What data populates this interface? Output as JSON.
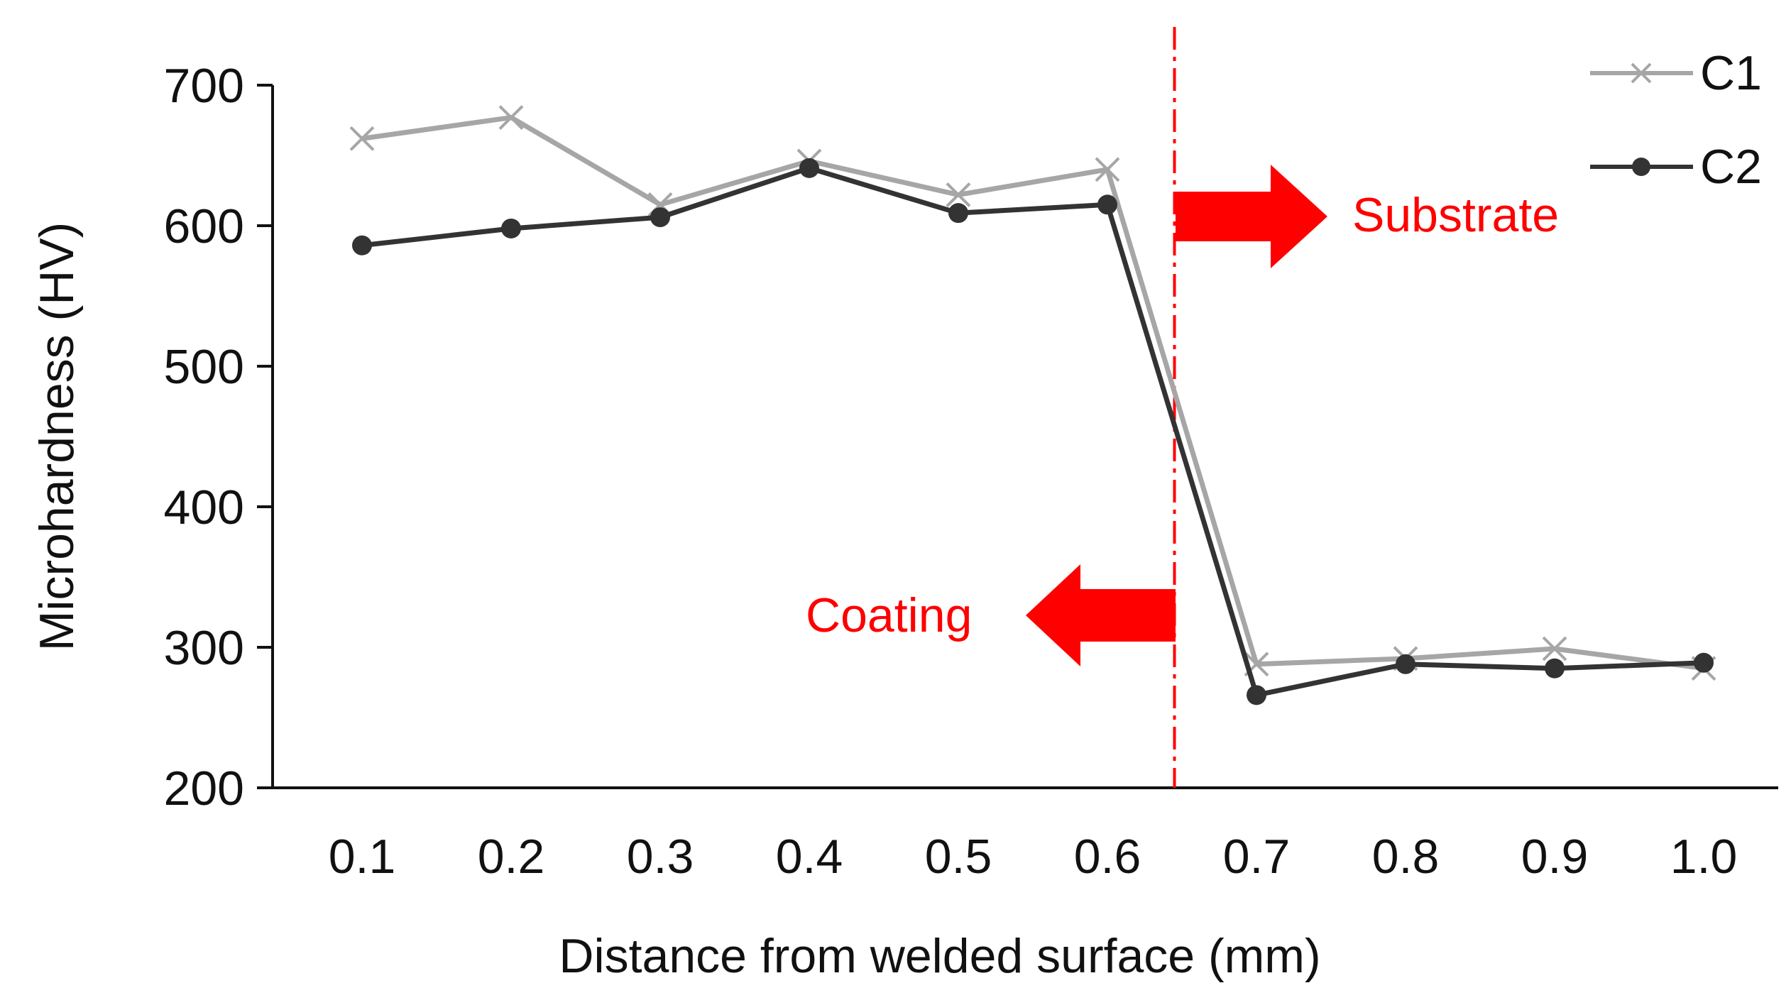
{
  "chart_data": {
    "type": "line",
    "title": "",
    "xlabel": "Distance from welded surface (mm)",
    "ylabel": "Microhardness (HV)",
    "x": [
      0.1,
      0.2,
      0.3,
      0.4,
      0.5,
      0.6,
      0.7,
      0.8,
      0.9,
      1.0
    ],
    "x_tick_labels": [
      "0.1",
      "0.2",
      "0.3",
      "0.4",
      "0.5",
      "0.6",
      "0.7",
      "0.8",
      "0.9",
      "1.0"
    ],
    "ylim": [
      200,
      700
    ],
    "y_ticks": [
      200,
      300,
      400,
      500,
      600,
      700
    ],
    "y_tick_labels": [
      "200",
      "300",
      "400",
      "500",
      "600",
      "700"
    ],
    "grid": false,
    "legend_position": "top-right",
    "series": [
      {
        "name": "C1",
        "marker": "x",
        "color": "#a6a6a6",
        "values": [
          662,
          677,
          615,
          646,
          622,
          640,
          288,
          292,
          299,
          285
        ]
      },
      {
        "name": "C2",
        "marker": "circle",
        "color": "#333333",
        "values": [
          586,
          598,
          606,
          641,
          609,
          615,
          266,
          288,
          285,
          289
        ]
      }
    ],
    "annotations": {
      "boundary_x": 0.645,
      "boundary_color": "#ff0000",
      "substrate_label": "Substrate",
      "coating_label": "Coating",
      "arrow_color": "#ff0000",
      "label_color": "#ff0000"
    }
  }
}
